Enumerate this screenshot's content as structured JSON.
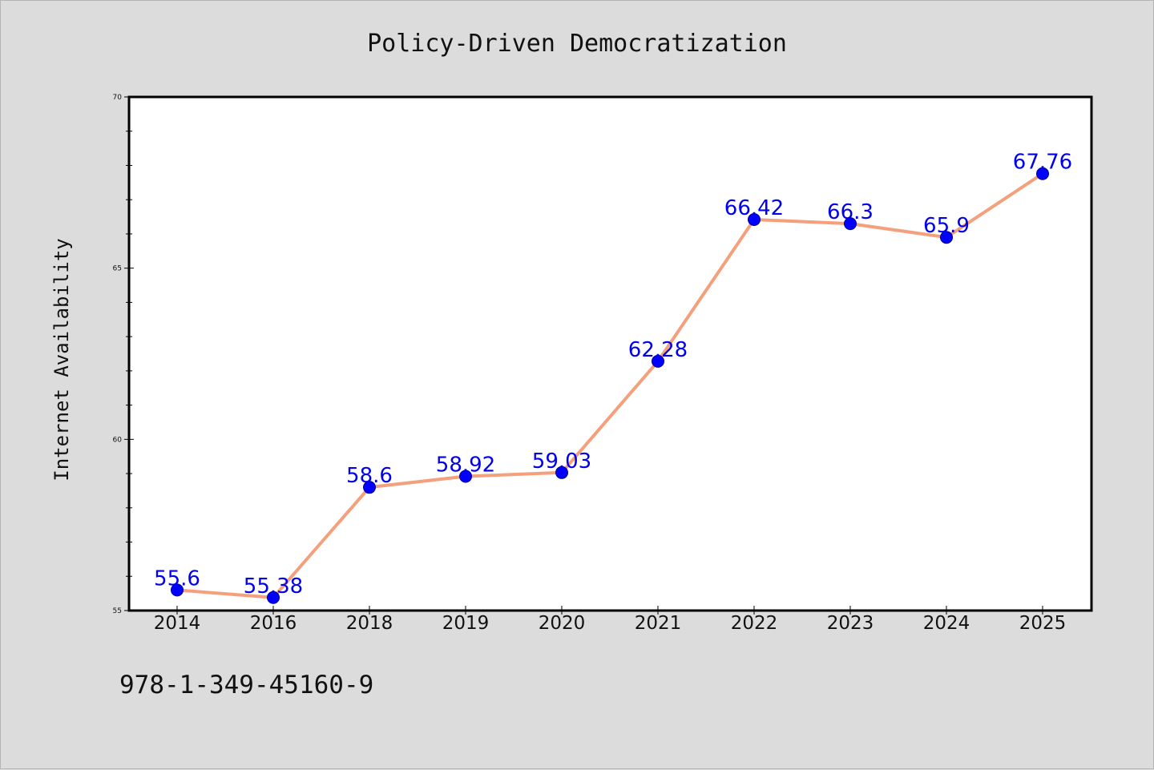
{
  "colors": {
    "background": "#dcdcdc",
    "plot_background": "#ffffff",
    "line": "#f4a07c",
    "marker": "#0000ff",
    "data_label": "#0000ee"
  },
  "footer_text": "978-1-349-45160-9",
  "chart_data": {
    "type": "line",
    "title": "Policy-Driven Democratization",
    "xlabel": "",
    "ylabel": "Internet Availability",
    "categories": [
      "2014",
      "2016",
      "2018",
      "2019",
      "2020",
      "2021",
      "2022",
      "2023",
      "2024",
      "2025"
    ],
    "series": [
      {
        "values": [
          55.6,
          55.38,
          58.6,
          58.92,
          59.03,
          62.28,
          66.42,
          66.3,
          65.9,
          67.76
        ],
        "labels": [
          "55.6",
          "55.38",
          "58.6",
          "58.92",
          "59.03",
          "62.28",
          "66.42",
          "66.3",
          "65.9",
          "67.76"
        ]
      }
    ],
    "ylim": [
      55,
      70
    ],
    "yticks": [
      55,
      60,
      65,
      70
    ],
    "grid": false,
    "legend": "none",
    "marker": "circle"
  }
}
